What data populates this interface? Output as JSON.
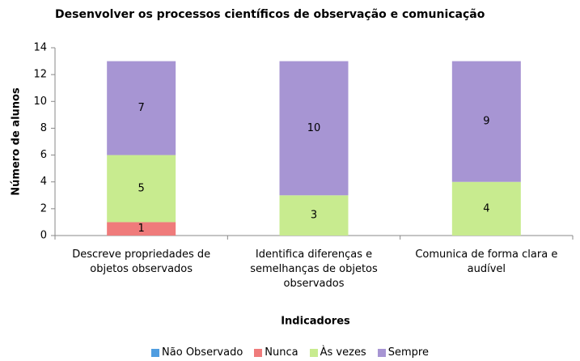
{
  "chart_data": {
    "type": "stacked_bar",
    "title": "Desenvolver os processos científicos de observação e comunicação",
    "x_label": "Indicadores",
    "y_label": "Número de alunos",
    "categories": [
      "Descreve propriedades de objetos observados",
      "Identifica diferenças e semelhanças de objetos observados",
      "Comunica de forma clara e audível"
    ],
    "series": [
      {
        "name": "Não Observado",
        "color": "#4f9de0",
        "values": [
          0,
          0,
          0
        ]
      },
      {
        "name": "Nunca",
        "color": "#ef7b7b",
        "values": [
          1,
          0,
          0
        ]
      },
      {
        "name": "Às vezes",
        "color": "#c8eb8f",
        "values": [
          5,
          3,
          4
        ]
      },
      {
        "name": "Sempre",
        "color": "#a795d3",
        "values": [
          7,
          10,
          9
        ]
      }
    ],
    "ylim": [
      0,
      14
    ],
    "yticks": [
      0,
      2,
      4,
      6,
      8,
      10,
      12,
      14
    ],
    "legend": "bottom"
  }
}
